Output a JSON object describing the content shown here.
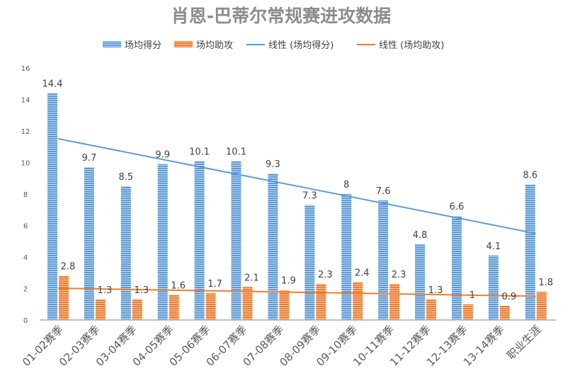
{
  "chart_data": {
    "type": "bar",
    "title": "肖恩-巴蒂尔常规赛进攻数据",
    "categories": [
      "01-02赛季",
      "02-03赛季",
      "03-04赛季",
      "04-05赛季",
      "05-06赛季",
      "06-07赛季",
      "07-08赛季",
      "08-09赛季",
      "09-10赛季",
      "10-11赛季",
      "11-12赛季",
      "12-13赛季",
      "13-14赛季",
      "职业生涯"
    ],
    "series": [
      {
        "name": "场均得分",
        "color": "#5b9bd5",
        "values": [
          14.4,
          9.7,
          8.5,
          9.9,
          10.1,
          10.1,
          9.3,
          7.3,
          8,
          7.6,
          4.8,
          6.6,
          4.1,
          8.6
        ]
      },
      {
        "name": "场均助攻",
        "color": "#ed7d31",
        "values": [
          2.8,
          1.3,
          1.3,
          1.6,
          1.7,
          2.1,
          1.9,
          2.3,
          2.4,
          2.3,
          1.3,
          1,
          0.9,
          1.8
        ]
      }
    ],
    "trendlines": [
      {
        "name": "线性 (场均得分)",
        "series": "场均得分",
        "type": "linear",
        "color": "#5b9bd5"
      },
      {
        "name": "线性 (场均助攻)",
        "series": "场均助攻",
        "type": "linear",
        "color": "#ed7d31"
      }
    ],
    "ylim": [
      0,
      16
    ],
    "yticks": [
      0,
      2,
      4,
      6,
      8,
      10,
      12,
      14,
      16
    ],
    "grid": false,
    "legend": "top",
    "xlabel": "",
    "ylabel": ""
  }
}
